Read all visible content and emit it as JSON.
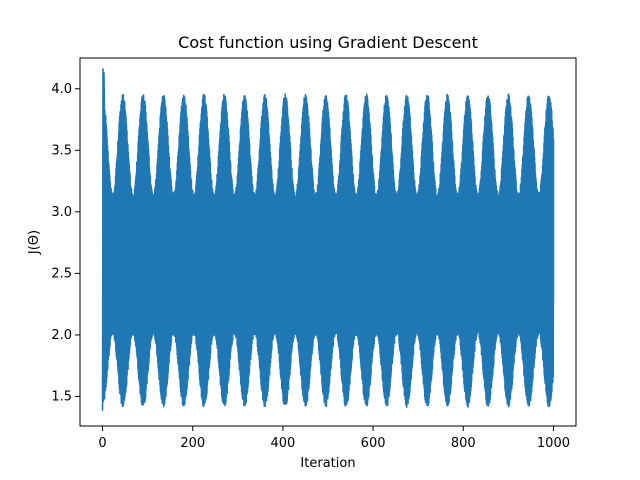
{
  "chart_data": {
    "type": "line",
    "title": "Cost function using Gradient Descent",
    "xlabel": "Iteration",
    "ylabel": "J(Θ)",
    "xlim": [
      -50,
      1050
    ],
    "ylim": [
      1.26,
      4.25
    ],
    "xticks": [
      0,
      200,
      400,
      600,
      800,
      1000
    ],
    "yticks": [
      1.5,
      2.0,
      2.5,
      3.0,
      3.5,
      4.0
    ],
    "xtick_labels": [
      "0",
      "200",
      "400",
      "600",
      "800",
      "1000"
    ],
    "ytick_labels": [
      "1.5",
      "2.0",
      "2.5",
      "3.0",
      "3.5",
      "4.0"
    ],
    "grid": false,
    "series": [
      {
        "color": "#1f77b4",
        "x_range": [
          0,
          1000
        ],
        "initial_spike": 4.16,
        "mean": 2.67,
        "envelope_period": 45,
        "upper_envelope": {
          "max": 3.96,
          "min": 3.15
        },
        "lower_envelope": {
          "min": 1.41,
          "max": 2.0
        },
        "end_value": 2.27,
        "description_values": {
          "start": 1.39,
          "end": 2.27
        }
      }
    ]
  }
}
